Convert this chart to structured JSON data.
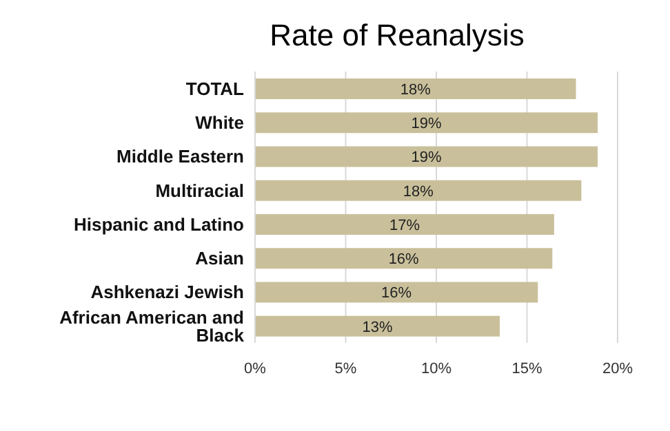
{
  "chart_data": {
    "type": "bar",
    "orientation": "horizontal",
    "title": "Rate of Reanalysis",
    "categories": [
      "TOTAL",
      "White",
      "Middle Eastern",
      "Multiracial",
      "Hispanic and Latino",
      "Asian",
      "Ashkenazi Jewish",
      "African American and Black"
    ],
    "values": [
      17.7,
      18.9,
      18.9,
      18.0,
      16.5,
      16.4,
      15.6,
      13.5
    ],
    "value_labels": [
      "18%",
      "19%",
      "19%",
      "18%",
      "17%",
      "16%",
      "16%",
      "13%"
    ],
    "color": "#c9c09b",
    "xlim": [
      0,
      20
    ],
    "xticks": [
      {
        "value": 0,
        "label": "0%"
      },
      {
        "value": 5,
        "label": "5%"
      },
      {
        "value": 10,
        "label": "10%"
      },
      {
        "value": 15,
        "label": "15%"
      },
      {
        "value": 20,
        "label": "20%"
      }
    ],
    "grid": "x"
  }
}
